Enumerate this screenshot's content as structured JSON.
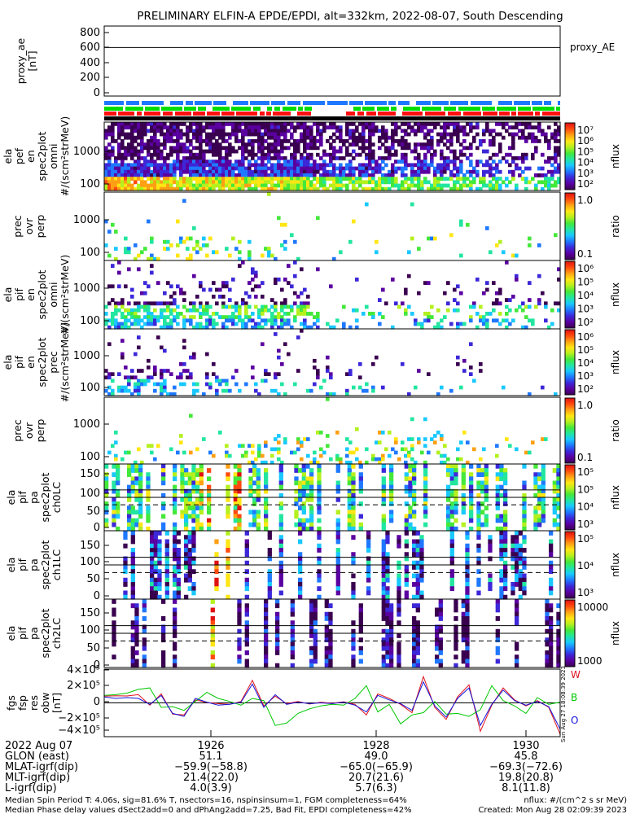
{
  "title": "PRELIMINARY ELFIN-A EPDE/EPDI, alt=332km, 2022-08-07, South Descending",
  "panels": [
    {
      "id": "proxy_ae",
      "ylabel": [
        "proxy_ae",
        "[nT]"
      ],
      "yticks": [
        "800",
        "600",
        "400",
        "200",
        "0"
      ],
      "legend": "proxy_AE"
    },
    {
      "id": "bars",
      "ylabel": [],
      "yticks": []
    },
    {
      "id": "pef_en",
      "ylabel": [
        "ela",
        "pef",
        "en",
        "spec2plot",
        "omni",
        "#/(scm²strMeV)"
      ],
      "yticks": [
        "1000",
        "100"
      ],
      "cbar": {
        "label": "nflux",
        "ticks": [
          "10⁷",
          "10⁶",
          "10⁵",
          "10⁴",
          "10³",
          "10²"
        ]
      }
    },
    {
      "id": "pef_ratio",
      "ylabel": [
        "prec",
        "ovr",
        "perp"
      ],
      "yticks": [
        "1000",
        "100"
      ],
      "cbar": {
        "label": "ratio",
        "ticks": [
          "1.0",
          "0.1"
        ]
      }
    },
    {
      "id": "pif_en",
      "ylabel": [
        "ela",
        "pif",
        "en",
        "spec2plot",
        "omni",
        "#/(scm²strMeV)"
      ],
      "yticks": [
        "1000",
        "100"
      ],
      "cbar": {
        "label": "nflux",
        "ticks": [
          "10⁶",
          "10⁵",
          "10⁴",
          "10³",
          "10²"
        ]
      }
    },
    {
      "id": "pif_prec",
      "ylabel": [
        "ela",
        "pif",
        "en",
        "spec2plot",
        "prec",
        "#/(scm²strMeV)"
      ],
      "yticks": [
        "1000",
        "100"
      ],
      "cbar": {
        "label": "nflux",
        "ticks": [
          "10⁶",
          "10⁵",
          "10⁴",
          "10³",
          "10²"
        ]
      }
    },
    {
      "id": "pif_ratio",
      "ylabel": [
        "prec",
        "ovr",
        "perp"
      ],
      "yticks": [
        "1000",
        "100"
      ],
      "cbar": {
        "label": "ratio",
        "ticks": [
          "1.0",
          "0.1"
        ]
      }
    },
    {
      "id": "pa0",
      "ylabel": [
        "ela",
        "pif",
        "pa",
        "spec2plot",
        "ch0LC"
      ],
      "yticks": [
        "150",
        "100",
        "50",
        "0"
      ],
      "cbar": {
        "label": "nflux",
        "ticks": [
          "10⁵",
          "10⁵",
          "10⁴",
          "10³"
        ]
      }
    },
    {
      "id": "pa1",
      "ylabel": [
        "ela",
        "pif",
        "pa",
        "spec2plot",
        "ch1LC"
      ],
      "yticks": [
        "150",
        "100",
        "50",
        "0"
      ],
      "cbar": {
        "label": "nflux",
        "ticks": [
          "10⁵",
          "10⁴",
          "10³"
        ]
      }
    },
    {
      "id": "pa2",
      "ylabel": [
        "ela",
        "pif",
        "pa",
        "spec2plot",
        "ch2LC"
      ],
      "yticks": [
        "150",
        "100",
        "50",
        "0"
      ],
      "cbar": {
        "label": "nflux",
        "ticks": [
          "10000",
          "1000"
        ]
      }
    },
    {
      "id": "fgs",
      "ylabel": [
        "fgs",
        "fsp",
        "res",
        "obw",
        "[nT]"
      ],
      "yticks": [
        "4×10⁵",
        "2×10⁵",
        "0",
        "−2×10⁵",
        "−4×10⁵"
      ],
      "legend_letters": [
        "W",
        "B",
        "O"
      ],
      "stamp": "Sun Aug 27 18:08:39 2023"
    }
  ],
  "xaxis": {
    "ticks": [
      "1926",
      "1928",
      "1930"
    ],
    "rows": [
      {
        "label": "2022 Aug 07",
        "values": [
          "",
          "",
          ""
        ]
      },
      {
        "label": "GLON (east)",
        "values": [
          "51.1",
          "49.0",
          "45.8"
        ]
      },
      {
        "label": "MLAT-igrf(dip)",
        "values": [
          "−59.9(−58.8)",
          "−65.0(−65.9)",
          "−69.3(−72.6)"
        ]
      },
      {
        "label": "MLT-igrf(dip)",
        "values": [
          "21.4(22.0)",
          "20.7(21.6)",
          "19.8(20.8)"
        ]
      },
      {
        "label": "L-igrf(dip)",
        "values": [
          "4.0(3.9)",
          "5.7(6.3)",
          "8.1(11.8)"
        ]
      }
    ]
  },
  "footer": {
    "line1_left": "Median Spin Period T: 4.06s, sig=81.6% T, nsectors=16, nspinsinsum=1, FGM completeness=64%",
    "line2_left": "Median Phase delay values dSect2add=0 and dPhAng2add=7.25, Bad Fit, EPDI completeness=42%",
    "line1_right": "nflux: #/(cm^2 s sr MeV)",
    "line2_right": "Created: Mon Aug 28 02:09:39 2023"
  },
  "colors": {
    "blue": "#1e78ff",
    "green": "#00dd00",
    "red": "#ff1010",
    "black": "#000000",
    "w_line": "#e0141e",
    "b_line": "#00c800",
    "o_line": "#1414dc"
  },
  "chart_data": {
    "type": "heatmap",
    "title": "PRELIMINARY ELFIN-A EPDE/EPDI, alt=332km, 2022-08-07, South Descending",
    "x_ticks": [
      "1926",
      "1928",
      "1930"
    ],
    "proxy_ae": {
      "ylim": [
        0,
        800
      ],
      "value": 570,
      "ylabel": "proxy_ae [nT]",
      "legend": "proxy_AE"
    },
    "energy_ylim": [
      60,
      3000
    ],
    "pitch_angle_ylim": [
      0,
      180
    ],
    "pitch_angle_reference_lines": [
      110,
      90,
      70
    ],
    "fgs": {
      "ylim": [
        -450000,
        450000
      ],
      "series": [
        {
          "name": "W",
          "values": [
            90000,
            95000,
            92000,
            110000,
            -30000,
            120000,
            -150000,
            -160000,
            40000,
            5000,
            -10000,
            -20000,
            20000,
            300000,
            -40000,
            90000,
            -10000,
            20000,
            -15000,
            10000,
            -5000,
            15000,
            -20000,
            -160000,
            120000,
            60000,
            -20000,
            -130000,
            350000,
            -60000,
            -220000,
            80000,
            240000,
            -380000,
            -30000,
            200000,
            40000,
            -40000,
            30000,
            -60000,
            -420000
          ]
        },
        {
          "name": "B",
          "values": [
            100000,
            110000,
            130000,
            180000,
            200000,
            -60000,
            -50000,
            -100000,
            20000,
            140000,
            60000,
            20000,
            -30000,
            60000,
            30000,
            -300000,
            -270000,
            -140000,
            -80000,
            -40000,
            -20000,
            -30000,
            60000,
            230000,
            -120000,
            -20000,
            -280000,
            -160000,
            -130000,
            20000,
            -150000,
            -140000,
            -180000,
            -90000,
            230000,
            30000,
            -40000,
            -140000,
            70000,
            -20000,
            10000
          ]
        },
        {
          "name": "O",
          "values": [
            80000,
            60000,
            70000,
            60000,
            -20000,
            100000,
            -140000,
            -180000,
            60000,
            10000,
            -30000,
            -20000,
            10000,
            250000,
            -60000,
            110000,
            -20000,
            10000,
            -10000,
            0,
            -10000,
            10000,
            -30000,
            -120000,
            100000,
            40000,
            -10000,
            -100000,
            280000,
            -40000,
            -190000,
            60000,
            200000,
            -300000,
            -20000,
            170000,
            30000,
            -30000,
            20000,
            -50000,
            -350000
          ]
        }
      ]
    }
  }
}
